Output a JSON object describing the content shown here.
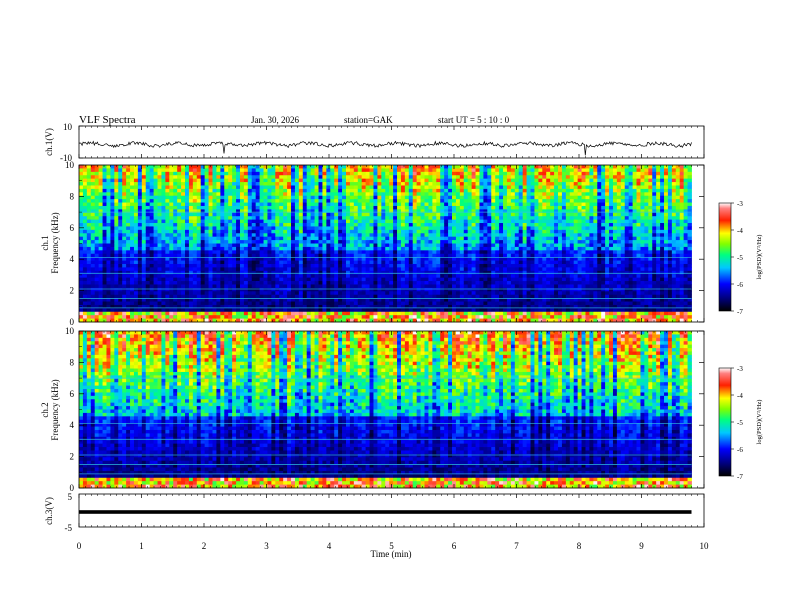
{
  "header": {
    "title": "VLF  Spectra",
    "date": "Jan. 30, 2026",
    "station": "station=GAK",
    "start": "start  UT  =    5  : 10 : 0"
  },
  "chart_data": [
    {
      "type": "line",
      "name": "ch1-waveform",
      "ylabel": "ch.1(V)",
      "ylim": [
        -10,
        10
      ],
      "yticks": [
        "10",
        "-10"
      ],
      "xlim": [
        0,
        10
      ],
      "description_values": "continuous waveform near baseline, small fluctuations"
    },
    {
      "type": "heatmap",
      "name": "ch1-spectrogram",
      "ylabel_top": "ch.1",
      "ylabel": "Frequency  (kHz)",
      "ylim": [
        0,
        10
      ],
      "yticks": [
        "0",
        "2",
        "4",
        "6",
        "8",
        "10"
      ],
      "xlim": [
        0,
        10
      ],
      "colorbar": {
        "label": "log(PSD)(V²/Hz)",
        "range": [
          -7,
          -3
        ],
        "ticks": [
          "-3",
          "-4",
          "-5",
          "-6",
          "-7"
        ]
      }
    },
    {
      "type": "heatmap",
      "name": "ch2-spectrogram",
      "ylabel_top": "ch.2",
      "ylabel": "Frequency  (kHz)",
      "ylim": [
        0,
        10
      ],
      "yticks": [
        "0",
        "2",
        "4",
        "6",
        "8",
        "10"
      ],
      "xlim": [
        0,
        10
      ],
      "colorbar": {
        "label": "log(PSD)(V²/Hz)",
        "range": [
          -7,
          -3
        ],
        "ticks": [
          "-3",
          "-4",
          "-5",
          "-6",
          "-7"
        ]
      }
    },
    {
      "type": "line",
      "name": "ch3-waveform",
      "ylabel": "ch.3(V)",
      "ylim": [
        -5,
        5
      ],
      "yticks": [
        "5",
        "-5"
      ],
      "xlim": [
        0,
        10
      ],
      "xlabel": "Time  (min)",
      "xticks": [
        "0",
        "1",
        "2",
        "3",
        "4",
        "5",
        "6",
        "7",
        "8",
        "9",
        "10"
      ],
      "constant_value": 0
    }
  ],
  "colors": {
    "frame": "#000000",
    "waveform": "#000000",
    "colormap": [
      "#000060",
      "#0000ff",
      "#00c0ff",
      "#00ff80",
      "#ffff00",
      "#ff0000",
      "#ffffff"
    ]
  }
}
